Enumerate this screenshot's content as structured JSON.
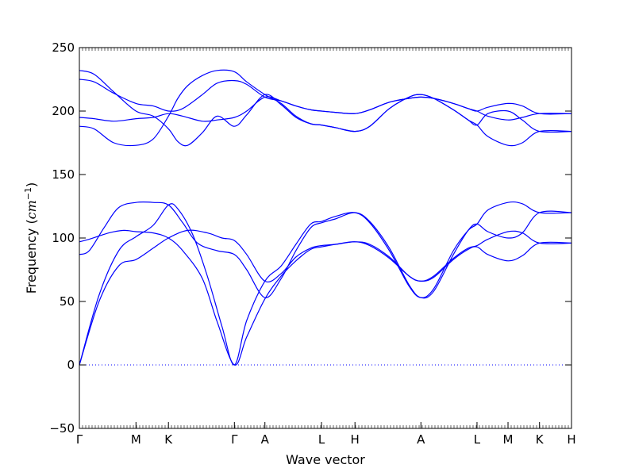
{
  "chart_data": {
    "type": "line",
    "title": "",
    "xlabel": "Wave vector",
    "ylabel": "Frequency",
    "ylabel_unit": "cm",
    "ylabel_unit_sup": "−1",
    "ylim": [
      -50,
      250
    ],
    "yticks": [
      -50,
      0,
      50,
      100,
      150,
      200,
      250
    ],
    "xlim": [
      0,
      1
    ],
    "grid": false,
    "legend": "none",
    "line_color": "#0000ff",
    "zero_line": {
      "y": 0,
      "style": "dotted",
      "color": "#0000ff"
    },
    "x_ticks": [
      {
        "label": "Γ",
        "x": 0.0
      },
      {
        "label": "M",
        "x": 0.115
      },
      {
        "label": "K",
        "x": 0.181
      },
      {
        "label": "Γ",
        "x": 0.315
      },
      {
        "label": "A",
        "x": 0.377
      },
      {
        "label": "L",
        "x": 0.492
      },
      {
        "label": "H",
        "x": 0.56
      },
      {
        "label": "A",
        "x": 0.694
      },
      {
        "label": "L",
        "x": 0.808
      },
      {
        "label": "M",
        "x": 0.871
      },
      {
        "label": "K",
        "x": 0.935
      },
      {
        "label": "H",
        "x": 1.0
      }
    ],
    "series": [
      {
        "points": [
          [
            0.0,
            0
          ],
          [
            0.04,
            55
          ],
          [
            0.08,
            90
          ],
          [
            0.115,
            101
          ],
          [
            0.15,
            110
          ],
          [
            0.181,
            126
          ],
          [
            0.2,
            123
          ],
          [
            0.23,
            103
          ],
          [
            0.26,
            70
          ],
          [
            0.29,
            30
          ],
          [
            0.315,
            0
          ],
          [
            0.34,
            35
          ],
          [
            0.377,
            66
          ],
          [
            0.41,
            78
          ],
          [
            0.44,
            95
          ],
          [
            0.47,
            111
          ],
          [
            0.492,
            113
          ],
          [
            0.52,
            117
          ],
          [
            0.56,
            120
          ],
          [
            0.59,
            112
          ],
          [
            0.63,
            90
          ],
          [
            0.67,
            62
          ],
          [
            0.694,
            53
          ],
          [
            0.72,
            60
          ],
          [
            0.76,
            90
          ],
          [
            0.79,
            106
          ],
          [
            0.808,
            111
          ],
          [
            0.83,
            122
          ],
          [
            0.871,
            128
          ],
          [
            0.9,
            127
          ],
          [
            0.935,
            120
          ],
          [
            1.0,
            120
          ]
        ]
      },
      {
        "points": [
          [
            0.0,
            0
          ],
          [
            0.04,
            50
          ],
          [
            0.08,
            78
          ],
          [
            0.115,
            83
          ],
          [
            0.15,
            92
          ],
          [
            0.181,
            100
          ],
          [
            0.22,
            106
          ],
          [
            0.26,
            104
          ],
          [
            0.29,
            100
          ],
          [
            0.315,
            98
          ],
          [
            0.34,
            87
          ],
          [
            0.377,
            66
          ],
          [
            0.41,
            72
          ],
          [
            0.44,
            85
          ],
          [
            0.47,
            92
          ],
          [
            0.492,
            94
          ],
          [
            0.52,
            95
          ],
          [
            0.56,
            97
          ],
          [
            0.59,
            95
          ],
          [
            0.63,
            85
          ],
          [
            0.67,
            70
          ],
          [
            0.694,
            66
          ],
          [
            0.72,
            70
          ],
          [
            0.76,
            84
          ],
          [
            0.79,
            92
          ],
          [
            0.808,
            94
          ],
          [
            0.83,
            99
          ],
          [
            0.871,
            105
          ],
          [
            0.9,
            104
          ],
          [
            0.935,
            96
          ],
          [
            1.0,
            96
          ]
        ]
      },
      {
        "points": [
          [
            0.0,
            87
          ],
          [
            0.02,
            90
          ],
          [
            0.05,
            108
          ],
          [
            0.08,
            124
          ],
          [
            0.115,
            128
          ],
          [
            0.15,
            128
          ],
          [
            0.181,
            126
          ],
          [
            0.21,
            112
          ],
          [
            0.24,
            96
          ],
          [
            0.28,
            90
          ],
          [
            0.315,
            87
          ],
          [
            0.34,
            75
          ],
          [
            0.377,
            53
          ],
          [
            0.41,
            68
          ],
          [
            0.44,
            90
          ],
          [
            0.47,
            108
          ],
          [
            0.492,
            112
          ],
          [
            0.52,
            115
          ],
          [
            0.56,
            120
          ],
          [
            0.59,
            113
          ],
          [
            0.63,
            92
          ],
          [
            0.67,
            63
          ],
          [
            0.694,
            53
          ],
          [
            0.72,
            58
          ],
          [
            0.76,
            87
          ],
          [
            0.79,
            106
          ],
          [
            0.808,
            111
          ],
          [
            0.83,
            105
          ],
          [
            0.871,
            100
          ],
          [
            0.9,
            104
          ],
          [
            0.935,
            120
          ],
          [
            1.0,
            120
          ]
        ]
      },
      {
        "points": [
          [
            0.0,
            97
          ],
          [
            0.02,
            99
          ],
          [
            0.06,
            104
          ],
          [
            0.09,
            106
          ],
          [
            0.115,
            105
          ],
          [
            0.15,
            104
          ],
          [
            0.181,
            100
          ],
          [
            0.21,
            90
          ],
          [
            0.25,
            68
          ],
          [
            0.28,
            34
          ],
          [
            0.315,
            0
          ],
          [
            0.34,
            22
          ],
          [
            0.377,
            52
          ],
          [
            0.41,
            70
          ],
          [
            0.44,
            82
          ],
          [
            0.47,
            91
          ],
          [
            0.492,
            93
          ],
          [
            0.52,
            95
          ],
          [
            0.56,
            97
          ],
          [
            0.59,
            94
          ],
          [
            0.63,
            84
          ],
          [
            0.67,
            70
          ],
          [
            0.694,
            66
          ],
          [
            0.72,
            69
          ],
          [
            0.76,
            83
          ],
          [
            0.79,
            91
          ],
          [
            0.808,
            93
          ],
          [
            0.83,
            87
          ],
          [
            0.871,
            82
          ],
          [
            0.9,
            86
          ],
          [
            0.935,
            96
          ],
          [
            1.0,
            96
          ]
        ]
      },
      {
        "points": [
          [
            0.0,
            232
          ],
          [
            0.03,
            229
          ],
          [
            0.07,
            215
          ],
          [
            0.115,
            200
          ],
          [
            0.15,
            196
          ],
          [
            0.181,
            186
          ],
          [
            0.2,
            176
          ],
          [
            0.22,
            173
          ],
          [
            0.25,
            183
          ],
          [
            0.28,
            196
          ],
          [
            0.315,
            188
          ],
          [
            0.34,
            197
          ],
          [
            0.377,
            213
          ],
          [
            0.41,
            205
          ],
          [
            0.44,
            195
          ],
          [
            0.47,
            190
          ],
          [
            0.492,
            189
          ],
          [
            0.52,
            187
          ],
          [
            0.56,
            184
          ],
          [
            0.59,
            188
          ],
          [
            0.63,
            202
          ],
          [
            0.67,
            211
          ],
          [
            0.694,
            213
          ],
          [
            0.72,
            210
          ],
          [
            0.76,
            201
          ],
          [
            0.79,
            193
          ],
          [
            0.808,
            189
          ],
          [
            0.83,
            180
          ],
          [
            0.871,
            173
          ],
          [
            0.9,
            175
          ],
          [
            0.935,
            184
          ],
          [
            1.0,
            184
          ]
        ]
      },
      {
        "points": [
          [
            0.0,
            188
          ],
          [
            0.03,
            186
          ],
          [
            0.07,
            175
          ],
          [
            0.115,
            173
          ],
          [
            0.15,
            178
          ],
          [
            0.181,
            196
          ],
          [
            0.2,
            210
          ],
          [
            0.22,
            220
          ],
          [
            0.25,
            228
          ],
          [
            0.28,
            232
          ],
          [
            0.315,
            231
          ],
          [
            0.34,
            223
          ],
          [
            0.377,
            213
          ],
          [
            0.41,
            206
          ],
          [
            0.44,
            196
          ],
          [
            0.47,
            190
          ],
          [
            0.492,
            189
          ],
          [
            0.52,
            187
          ],
          [
            0.56,
            184
          ],
          [
            0.59,
            188
          ],
          [
            0.63,
            202
          ],
          [
            0.67,
            211
          ],
          [
            0.694,
            213
          ],
          [
            0.72,
            210
          ],
          [
            0.76,
            201
          ],
          [
            0.79,
            193
          ],
          [
            0.808,
            189
          ],
          [
            0.83,
            198
          ],
          [
            0.871,
            200
          ],
          [
            0.9,
            193
          ],
          [
            0.935,
            184
          ],
          [
            1.0,
            184
          ]
        ]
      },
      {
        "points": [
          [
            0.0,
            225
          ],
          [
            0.03,
            223
          ],
          [
            0.07,
            214
          ],
          [
            0.115,
            206
          ],
          [
            0.15,
            204
          ],
          [
            0.181,
            200
          ],
          [
            0.21,
            202
          ],
          [
            0.25,
            213
          ],
          [
            0.28,
            222
          ],
          [
            0.315,
            224
          ],
          [
            0.34,
            221
          ],
          [
            0.377,
            211
          ],
          [
            0.41,
            208
          ],
          [
            0.44,
            204
          ],
          [
            0.47,
            201
          ],
          [
            0.492,
            200
          ],
          [
            0.52,
            199
          ],
          [
            0.56,
            198
          ],
          [
            0.59,
            201
          ],
          [
            0.63,
            207
          ],
          [
            0.67,
            210
          ],
          [
            0.694,
            211
          ],
          [
            0.72,
            210
          ],
          [
            0.76,
            206
          ],
          [
            0.79,
            202
          ],
          [
            0.808,
            200
          ],
          [
            0.83,
            203
          ],
          [
            0.871,
            206
          ],
          [
            0.9,
            204
          ],
          [
            0.935,
            198
          ],
          [
            1.0,
            198
          ]
        ]
      },
      {
        "points": [
          [
            0.0,
            195
          ],
          [
            0.03,
            194
          ],
          [
            0.07,
            192
          ],
          [
            0.115,
            194
          ],
          [
            0.15,
            195
          ],
          [
            0.181,
            198
          ],
          [
            0.21,
            196
          ],
          [
            0.25,
            192
          ],
          [
            0.28,
            193
          ],
          [
            0.315,
            195
          ],
          [
            0.34,
            200
          ],
          [
            0.377,
            211
          ],
          [
            0.41,
            208
          ],
          [
            0.44,
            204
          ],
          [
            0.47,
            201
          ],
          [
            0.492,
            200
          ],
          [
            0.52,
            199
          ],
          [
            0.56,
            198
          ],
          [
            0.59,
            201
          ],
          [
            0.63,
            207
          ],
          [
            0.67,
            210
          ],
          [
            0.694,
            211
          ],
          [
            0.72,
            210
          ],
          [
            0.76,
            206
          ],
          [
            0.79,
            202
          ],
          [
            0.808,
            200
          ],
          [
            0.83,
            196
          ],
          [
            0.871,
            193
          ],
          [
            0.9,
            195
          ],
          [
            0.935,
            198
          ],
          [
            1.0,
            198
          ]
        ]
      }
    ]
  }
}
